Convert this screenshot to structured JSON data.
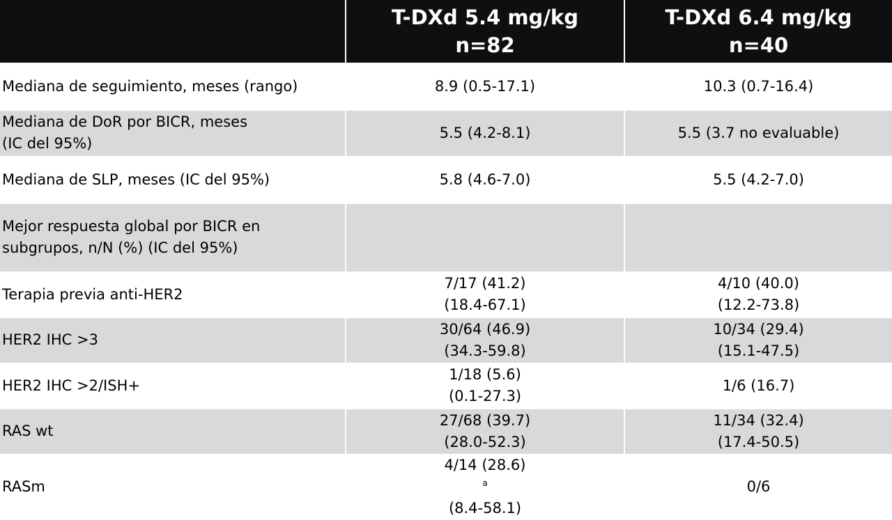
{
  "header": {
    "col1": "",
    "col2": {
      "line1": "T-DXd 5.4 mg/kg",
      "line2": "n=82"
    },
    "col3": {
      "line1": "T-DXd 6.4 mg/kg",
      "line2": "n=40"
    }
  },
  "rows": [
    {
      "label": [
        "Mediana de seguimiento, meses (rango)"
      ],
      "v1": [
        "8.9 (0.5-17.1)"
      ],
      "v2": [
        "10.3 (0.7-16.4)"
      ]
    },
    {
      "label": [
        "Mediana de DoR por BICR, meses",
        "(IC del 95%)"
      ],
      "v1": [
        "5.5 (4.2-8.1)"
      ],
      "v2": [
        "5.5 (3.7 no evaluable)"
      ]
    },
    {
      "label": [
        "Mediana de SLP, meses (IC del 95%)"
      ],
      "v1": [
        "5.8 (4.6-7.0)"
      ],
      "v2": [
        "5.5 (4.2-7.0)"
      ]
    },
    {
      "label": [
        "Mejor respuesta global por BICR en",
        "subgrupos, n/N (%) (IC del 95%)"
      ],
      "v1": [],
      "v2": []
    },
    {
      "label": [
        "Terapia previa anti-HER2"
      ],
      "v1": [
        "7/17 (41.2)",
        "(18.4-67.1)"
      ],
      "v2": [
        "4/10 (40.0)",
        "(12.2-73.8)"
      ]
    },
    {
      "label": [
        "HER2 IHC >3"
      ],
      "v1": [
        "30/64 (46.9)",
        "(34.3-59.8)"
      ],
      "v2": [
        "10/34 (29.4)",
        "(15.1-47.5)"
      ]
    },
    {
      "label": [
        "HER2 IHC >2/ISH+"
      ],
      "v1": [
        "1/18 (5.6)",
        "(0.1-27.3)"
      ],
      "v2": [
        "1/6 (16.7)"
      ]
    },
    {
      "label": [
        "RAS wt"
      ],
      "v1": [
        "27/68 (39.7)",
        "(28.0-52.3)"
      ],
      "v2": [
        "11/34 (32.4)",
        "(17.4-50.5)"
      ]
    },
    {
      "label": [
        "RASm"
      ],
      "v1": [
        "4/14 (28.6)",
        "(8.4-58.1)"
      ],
      "v1_sup": "a",
      "v2": [
        "0/6"
      ]
    }
  ],
  "colors": {
    "header_bg": "#0f0f0f",
    "header_text": "#ffffff",
    "alt_row_bg": "#d9d9d9",
    "row_bg": "#ffffff"
  }
}
